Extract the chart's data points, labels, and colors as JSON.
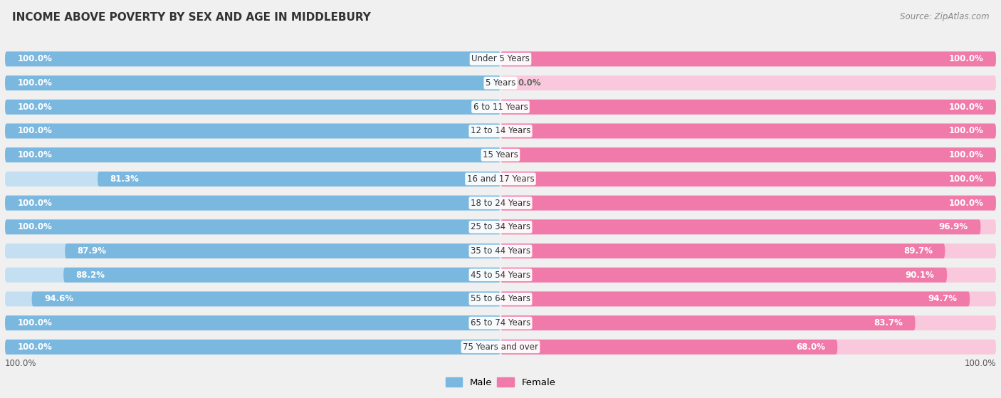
{
  "title": "INCOME ABOVE POVERTY BY SEX AND AGE IN MIDDLEBURY",
  "source": "Source: ZipAtlas.com",
  "categories": [
    "Under 5 Years",
    "5 Years",
    "6 to 11 Years",
    "12 to 14 Years",
    "15 Years",
    "16 and 17 Years",
    "18 to 24 Years",
    "25 to 34 Years",
    "35 to 44 Years",
    "45 to 54 Years",
    "55 to 64 Years",
    "65 to 74 Years",
    "75 Years and over"
  ],
  "male": [
    100.0,
    100.0,
    100.0,
    100.0,
    100.0,
    81.3,
    100.0,
    100.0,
    87.9,
    88.2,
    94.6,
    100.0,
    100.0
  ],
  "female": [
    100.0,
    0.0,
    100.0,
    100.0,
    100.0,
    100.0,
    100.0,
    96.9,
    89.7,
    90.1,
    94.7,
    83.7,
    68.0
  ],
  "male_color": "#7ab8e0",
  "female_color": "#f07aaa",
  "male_color_light": "#c5dff2",
  "female_color_light": "#f9c8dc",
  "bg_color": "#f0f0f0",
  "bar_height": 0.62,
  "label_fontsize": 8.5,
  "cat_fontsize": 8.5
}
